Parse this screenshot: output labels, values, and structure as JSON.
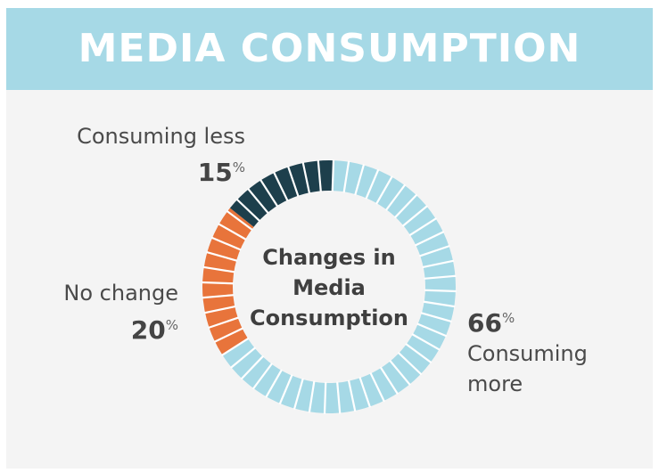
{
  "chart_data": {
    "type": "donut",
    "title": "MEDIA CONSUMPTION",
    "center_text": [
      "Changes in",
      "Media",
      "Consumption"
    ],
    "categories": [
      "Consuming more",
      "No change",
      "Consuming less"
    ],
    "values": [
      66,
      20,
      15
    ],
    "unit": "%",
    "colors": [
      "#a6d9e6",
      "#e8743b",
      "#1d3f4c"
    ]
  }
}
